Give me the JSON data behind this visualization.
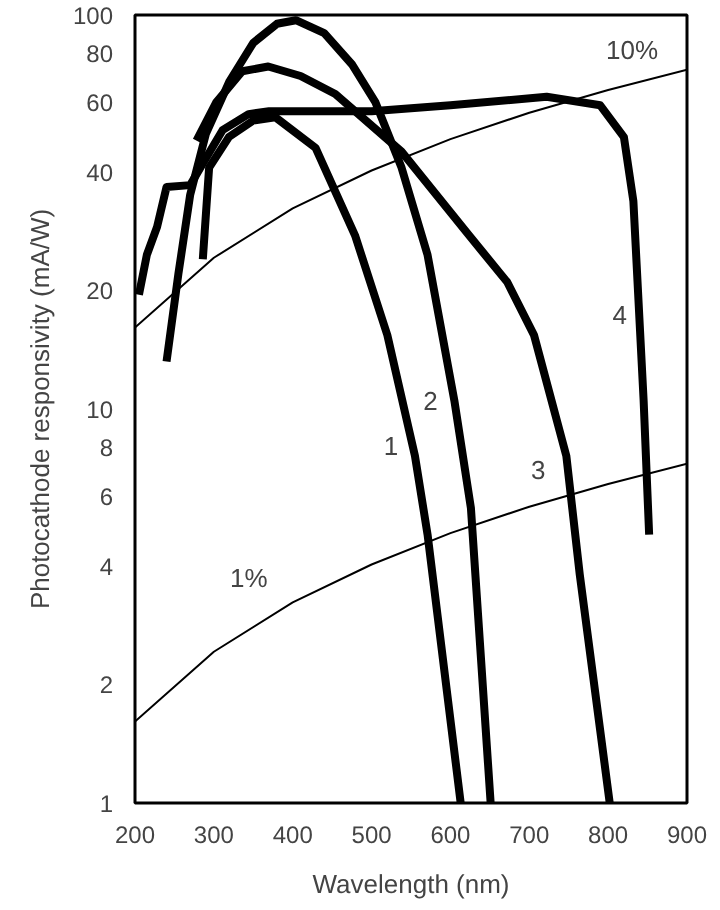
{
  "chart_data": {
    "type": "line",
    "xlabel": "Wavelength (nm)",
    "ylabel": "Photocathode responsivity (mA/W)",
    "log": "y",
    "grid": false,
    "legend": false,
    "marker": "none",
    "line_style": "solid",
    "xlim": [
      200,
      900
    ],
    "xticks": [
      200,
      300,
      400,
      500,
      600,
      700,
      800,
      900
    ],
    "ylim": [
      1,
      100
    ],
    "yticks": [
      1,
      2,
      4,
      6,
      8,
      10,
      20,
      40,
      60,
      80,
      100
    ],
    "series": [
      {
        "name": "1",
        "color": "#000000",
        "x": [
          286,
          294,
          319,
          350,
          378,
          429,
          479,
          520,
          555,
          571,
          613
        ],
        "values": [
          24,
          41,
          49,
          54,
          55,
          46,
          27.6,
          15.4,
          7.6,
          4.8,
          1
        ]
      },
      {
        "name": "2",
        "color": "#000000",
        "x": [
          240,
          255,
          270,
          290,
          320,
          350,
          380,
          404,
          440,
          475,
          505,
          538,
          571,
          605,
          626,
          651
        ],
        "values": [
          13.2,
          22,
          35,
          50,
          68,
          85,
          95,
          97,
          90,
          75,
          60,
          41,
          24.6,
          10.5,
          5.6,
          1
        ]
      },
      {
        "name": "3",
        "color": "#000000",
        "x": [
          278,
          303,
          336,
          369,
          410,
          454,
          538,
          621,
          672,
          706,
          747,
          764,
          802
        ],
        "values": [
          48,
          60,
          72,
          74,
          70,
          63,
          45,
          28,
          21,
          15.4,
          7.6,
          3.8,
          1
        ]
      },
      {
        "name": "4",
        "color": "#000000",
        "x": [
          205,
          215,
          228,
          240,
          270,
          286,
          311,
          344,
          370,
          500,
          600,
          722,
          790,
          820,
          832,
          845,
          852
        ],
        "values": [
          19.5,
          24.6,
          29,
          36.6,
          37,
          42,
          51,
          56,
          57,
          57,
          59,
          62,
          59,
          49,
          33.7,
          10.5,
          4.8
        ]
      },
      {
        "name": "10%",
        "color": "#000000",
        "x": [
          200,
          300,
          400,
          500,
          600,
          700,
          800,
          900
        ],
        "values": [
          16.1,
          24.2,
          32.3,
          40.3,
          48.4,
          56.5,
          64.5,
          72.6
        ]
      },
      {
        "name": "1%",
        "color": "#000000",
        "x": [
          200,
          300,
          400,
          500,
          600,
          700,
          800,
          900
        ],
        "values": [
          1.61,
          2.42,
          3.23,
          4.03,
          4.84,
          5.65,
          6.45,
          7.26
        ]
      }
    ]
  }
}
